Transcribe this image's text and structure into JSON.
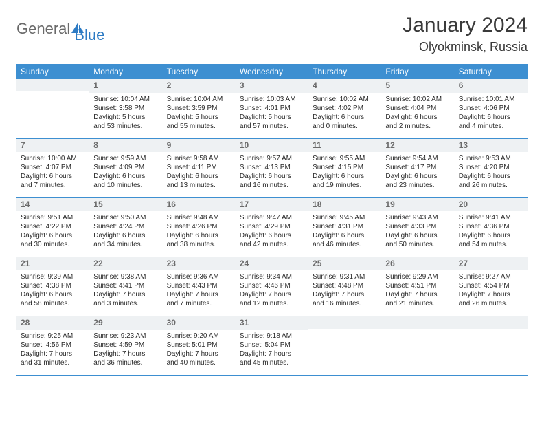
{
  "logo": {
    "general": "General",
    "blue": "Blue"
  },
  "title": "January 2024",
  "location": "Olyokminsk, Russia",
  "weekdays": [
    "Sunday",
    "Monday",
    "Tuesday",
    "Wednesday",
    "Thursday",
    "Friday",
    "Saturday"
  ],
  "colors": {
    "header_bg": "#3d8fd1",
    "header_text": "#ffffff",
    "daynum_bg": "#eef1f3",
    "border": "#3d8fd1",
    "logo_blue": "#2d7bc4",
    "logo_gray": "#6a6a6a"
  },
  "weeks": [
    [
      {
        "n": "",
        "sr": "",
        "ss": "",
        "dl": ""
      },
      {
        "n": "1",
        "sr": "Sunrise: 10:04 AM",
        "ss": "Sunset: 3:58 PM",
        "dl": "Daylight: 5 hours and 53 minutes."
      },
      {
        "n": "2",
        "sr": "Sunrise: 10:04 AM",
        "ss": "Sunset: 3:59 PM",
        "dl": "Daylight: 5 hours and 55 minutes."
      },
      {
        "n": "3",
        "sr": "Sunrise: 10:03 AM",
        "ss": "Sunset: 4:01 PM",
        "dl": "Daylight: 5 hours and 57 minutes."
      },
      {
        "n": "4",
        "sr": "Sunrise: 10:02 AM",
        "ss": "Sunset: 4:02 PM",
        "dl": "Daylight: 6 hours and 0 minutes."
      },
      {
        "n": "5",
        "sr": "Sunrise: 10:02 AM",
        "ss": "Sunset: 4:04 PM",
        "dl": "Daylight: 6 hours and 2 minutes."
      },
      {
        "n": "6",
        "sr": "Sunrise: 10:01 AM",
        "ss": "Sunset: 4:06 PM",
        "dl": "Daylight: 6 hours and 4 minutes."
      }
    ],
    [
      {
        "n": "7",
        "sr": "Sunrise: 10:00 AM",
        "ss": "Sunset: 4:07 PM",
        "dl": "Daylight: 6 hours and 7 minutes."
      },
      {
        "n": "8",
        "sr": "Sunrise: 9:59 AM",
        "ss": "Sunset: 4:09 PM",
        "dl": "Daylight: 6 hours and 10 minutes."
      },
      {
        "n": "9",
        "sr": "Sunrise: 9:58 AM",
        "ss": "Sunset: 4:11 PM",
        "dl": "Daylight: 6 hours and 13 minutes."
      },
      {
        "n": "10",
        "sr": "Sunrise: 9:57 AM",
        "ss": "Sunset: 4:13 PM",
        "dl": "Daylight: 6 hours and 16 minutes."
      },
      {
        "n": "11",
        "sr": "Sunrise: 9:55 AM",
        "ss": "Sunset: 4:15 PM",
        "dl": "Daylight: 6 hours and 19 minutes."
      },
      {
        "n": "12",
        "sr": "Sunrise: 9:54 AM",
        "ss": "Sunset: 4:17 PM",
        "dl": "Daylight: 6 hours and 23 minutes."
      },
      {
        "n": "13",
        "sr": "Sunrise: 9:53 AM",
        "ss": "Sunset: 4:20 PM",
        "dl": "Daylight: 6 hours and 26 minutes."
      }
    ],
    [
      {
        "n": "14",
        "sr": "Sunrise: 9:51 AM",
        "ss": "Sunset: 4:22 PM",
        "dl": "Daylight: 6 hours and 30 minutes."
      },
      {
        "n": "15",
        "sr": "Sunrise: 9:50 AM",
        "ss": "Sunset: 4:24 PM",
        "dl": "Daylight: 6 hours and 34 minutes."
      },
      {
        "n": "16",
        "sr": "Sunrise: 9:48 AM",
        "ss": "Sunset: 4:26 PM",
        "dl": "Daylight: 6 hours and 38 minutes."
      },
      {
        "n": "17",
        "sr": "Sunrise: 9:47 AM",
        "ss": "Sunset: 4:29 PM",
        "dl": "Daylight: 6 hours and 42 minutes."
      },
      {
        "n": "18",
        "sr": "Sunrise: 9:45 AM",
        "ss": "Sunset: 4:31 PM",
        "dl": "Daylight: 6 hours and 46 minutes."
      },
      {
        "n": "19",
        "sr": "Sunrise: 9:43 AM",
        "ss": "Sunset: 4:33 PM",
        "dl": "Daylight: 6 hours and 50 minutes."
      },
      {
        "n": "20",
        "sr": "Sunrise: 9:41 AM",
        "ss": "Sunset: 4:36 PM",
        "dl": "Daylight: 6 hours and 54 minutes."
      }
    ],
    [
      {
        "n": "21",
        "sr": "Sunrise: 9:39 AM",
        "ss": "Sunset: 4:38 PM",
        "dl": "Daylight: 6 hours and 58 minutes."
      },
      {
        "n": "22",
        "sr": "Sunrise: 9:38 AM",
        "ss": "Sunset: 4:41 PM",
        "dl": "Daylight: 7 hours and 3 minutes."
      },
      {
        "n": "23",
        "sr": "Sunrise: 9:36 AM",
        "ss": "Sunset: 4:43 PM",
        "dl": "Daylight: 7 hours and 7 minutes."
      },
      {
        "n": "24",
        "sr": "Sunrise: 9:34 AM",
        "ss": "Sunset: 4:46 PM",
        "dl": "Daylight: 7 hours and 12 minutes."
      },
      {
        "n": "25",
        "sr": "Sunrise: 9:31 AM",
        "ss": "Sunset: 4:48 PM",
        "dl": "Daylight: 7 hours and 16 minutes."
      },
      {
        "n": "26",
        "sr": "Sunrise: 9:29 AM",
        "ss": "Sunset: 4:51 PM",
        "dl": "Daylight: 7 hours and 21 minutes."
      },
      {
        "n": "27",
        "sr": "Sunrise: 9:27 AM",
        "ss": "Sunset: 4:54 PM",
        "dl": "Daylight: 7 hours and 26 minutes."
      }
    ],
    [
      {
        "n": "28",
        "sr": "Sunrise: 9:25 AM",
        "ss": "Sunset: 4:56 PM",
        "dl": "Daylight: 7 hours and 31 minutes."
      },
      {
        "n": "29",
        "sr": "Sunrise: 9:23 AM",
        "ss": "Sunset: 4:59 PM",
        "dl": "Daylight: 7 hours and 36 minutes."
      },
      {
        "n": "30",
        "sr": "Sunrise: 9:20 AM",
        "ss": "Sunset: 5:01 PM",
        "dl": "Daylight: 7 hours and 40 minutes."
      },
      {
        "n": "31",
        "sr": "Sunrise: 9:18 AM",
        "ss": "Sunset: 5:04 PM",
        "dl": "Daylight: 7 hours and 45 minutes."
      },
      {
        "n": "",
        "sr": "",
        "ss": "",
        "dl": ""
      },
      {
        "n": "",
        "sr": "",
        "ss": "",
        "dl": ""
      },
      {
        "n": "",
        "sr": "",
        "ss": "",
        "dl": ""
      }
    ]
  ]
}
